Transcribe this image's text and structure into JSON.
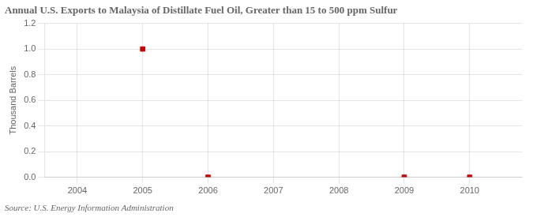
{
  "chart_data": {
    "type": "scatter",
    "title": "Annual U.S. Exports to Malaysia of Distillate Fuel Oil, Greater than 15 to 500 ppm Sulfur",
    "ylabel": "Thousand Barrels",
    "annotations": [
      "Source: U.S. Energy Information Administration"
    ],
    "x": [
      2005,
      2006,
      2009,
      2010
    ],
    "values": [
      1.0,
      0.0,
      0.0,
      0.0
    ],
    "color": "#cc0000",
    "marker": "square",
    "xlim": [
      2003.5,
      2010.8
    ],
    "xticks": [
      2004,
      2005,
      2006,
      2007,
      2008,
      2009,
      2010
    ],
    "ylim": [
      0.0,
      1.2
    ],
    "yticks": [
      {
        "value": 0,
        "label": "0.0"
      },
      0.2,
      0.4,
      0.6,
      0.8,
      {
        "value": 1,
        "label": "1.0"
      },
      1.2
    ],
    "grid": true
  }
}
